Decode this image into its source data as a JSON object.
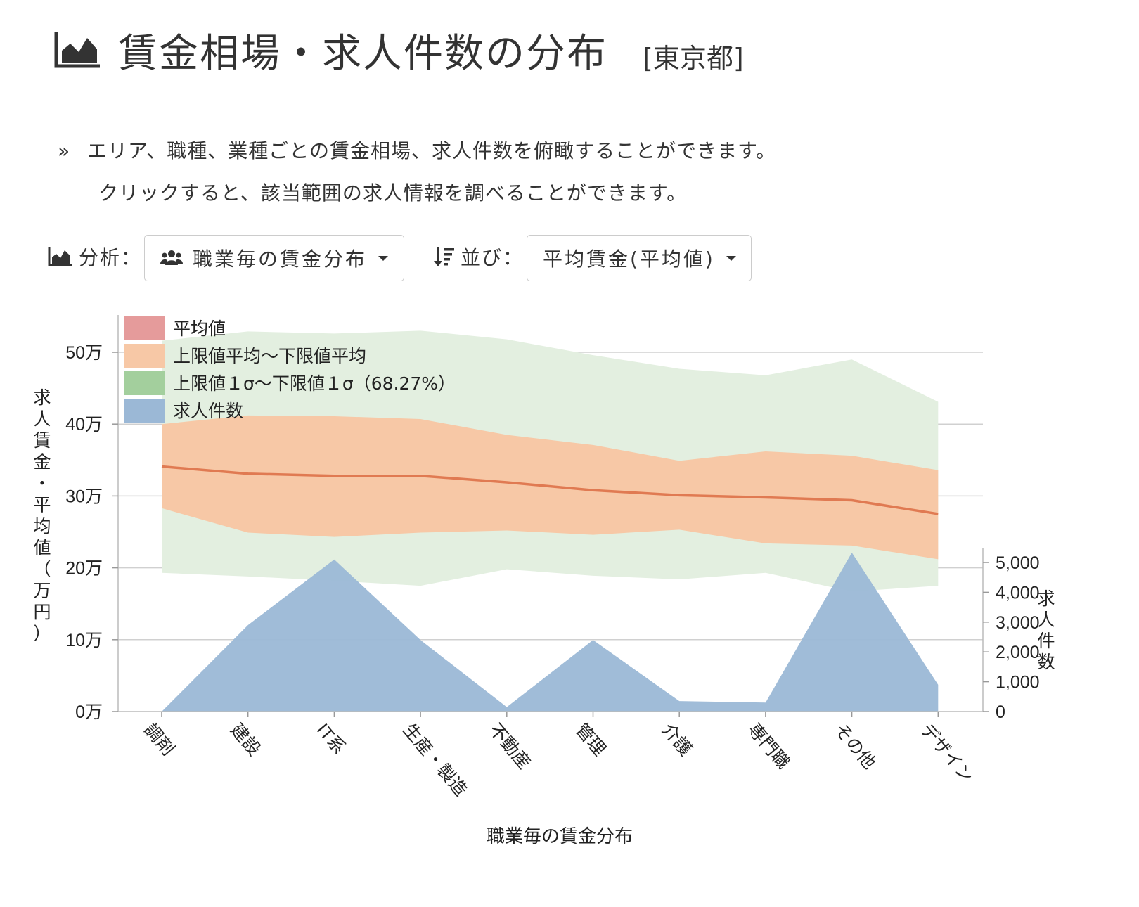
{
  "header": {
    "icon": "area-chart-icon",
    "title": "賃金相場・求人件数の分布",
    "region": "[東京都]"
  },
  "description": {
    "bullet": "»",
    "line1": "エリア、職種、業種ごとの賃金相場、求人件数を俯瞰することができます。",
    "line2": "クリックすると、該当範囲の求人情報を調べることができます。"
  },
  "controls": {
    "analysis": {
      "icon": "area-chart-icon",
      "label": "分析：",
      "button_icon": "users-icon",
      "value": "職業毎の賃金分布"
    },
    "sort": {
      "icon": "sort-amount-icon",
      "label": "並び：",
      "value": "平均賃金(平均値)"
    }
  },
  "chart_data": {
    "type": "area",
    "xlabel": "職業毎の賃金分布",
    "ylabel": "求人賃金・平均値（万円）",
    "y2label": "求人件数",
    "categories": [
      "調剤",
      "建設",
      "IT系",
      "生産・製造",
      "不動産",
      "管理",
      "介護",
      "専門職",
      "その他",
      "デザイン"
    ],
    "y_ticks": [
      "0万",
      "10万",
      "20万",
      "30万",
      "40万",
      "50万"
    ],
    "y2_ticks": [
      "0",
      "1,000",
      "2,000",
      "3,000",
      "4,000",
      "5,000"
    ],
    "ylim": [
      0,
      55
    ],
    "y2lim": [
      0,
      5500
    ],
    "grid": true,
    "legend_position": "top-left",
    "colors": {
      "mean": "#e07a52",
      "mean_legend": "#e59b9b",
      "range": "#f7c8a6",
      "sigma": "#e3efe0",
      "sigma_legend": "#a3cf9d",
      "count": "#9bb8d6"
    },
    "series": [
      {
        "name": "平均値",
        "values": [
          34.1,
          33.1,
          32.8,
          32.8,
          31.9,
          30.8,
          30.1,
          29.8,
          29.4,
          27.5
        ]
      },
      {
        "name": "上限値平均〜下限値平均",
        "upper": [
          40.0,
          41.2,
          41.1,
          40.7,
          38.5,
          37.1,
          34.9,
          36.2,
          35.6,
          33.6
        ],
        "lower": [
          28.3,
          24.9,
          24.3,
          24.9,
          25.2,
          24.6,
          25.3,
          23.4,
          23.1,
          21.2
        ]
      },
      {
        "name": "上限値１σ〜下限値１σ（68.27%）",
        "upper": [
          51.6,
          52.9,
          52.6,
          53.0,
          51.8,
          49.6,
          47.7,
          46.8,
          49.0,
          43.1
        ],
        "lower": [
          19.3,
          18.8,
          18.2,
          17.5,
          19.8,
          18.9,
          18.4,
          19.3,
          16.7,
          17.5
        ]
      },
      {
        "name": "求人件数",
        "values": [
          0,
          2900,
          5100,
          2400,
          150,
          2400,
          350,
          300,
          5330,
          900
        ]
      }
    ]
  }
}
